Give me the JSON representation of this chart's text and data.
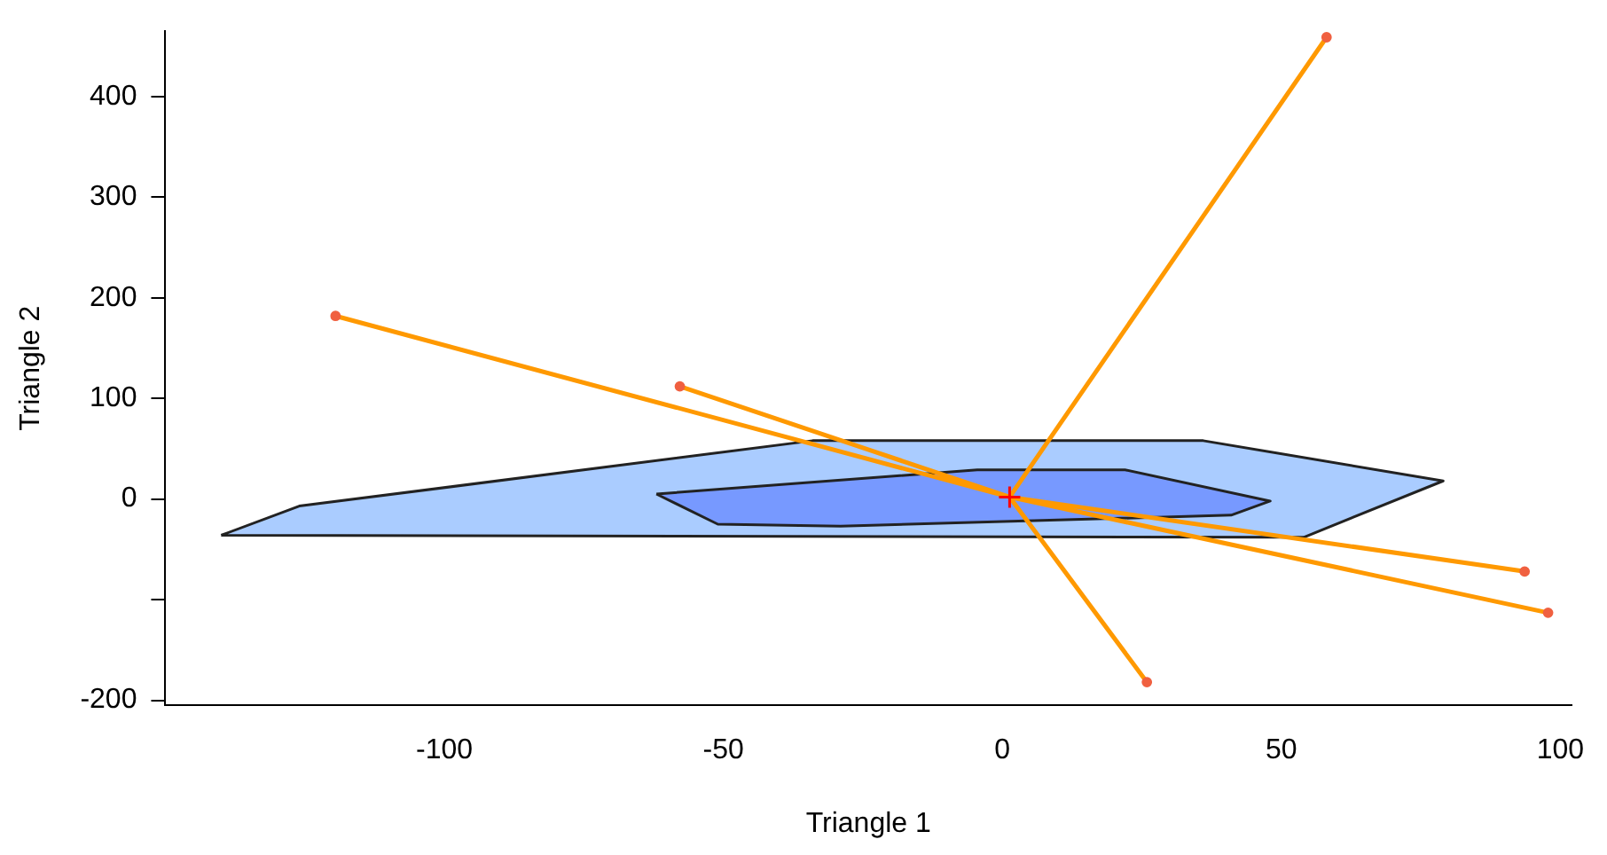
{
  "chart_data": {
    "type": "line",
    "xlabel": "Triangle 1",
    "ylabel": "Triangle 2",
    "xlim": [
      -150,
      102
    ],
    "ylim": [
      -205,
      465
    ],
    "xticks": [
      -100,
      -50,
      0,
      50,
      100
    ],
    "yticks": [
      -200,
      {
        "value": -100,
        "label": null
      },
      0,
      100,
      200,
      300,
      400
    ],
    "grid": false,
    "legend": false,
    "marker": "none",
    "line_style": "solid",
    "series": [
      {
        "type": "area",
        "color": "#aaccff",
        "x": [
          -140,
          -126,
          -34,
          36,
          79,
          54,
          -140
        ],
        "values": [
          -36,
          -7,
          58,
          58,
          18,
          -38,
          -36
        ]
      },
      {
        "type": "area",
        "color": "#7799ff",
        "x": [
          -62,
          -4.5,
          22,
          48,
          41,
          -29,
          -51,
          -62
        ],
        "values": [
          5,
          29,
          29,
          -2,
          -16,
          -27,
          -25,
          5
        ]
      },
      {
        "color": "#ff9900",
        "x": [
          1.3,
          -119.5,
          null,
          1.3,
          -57.8,
          null,
          1.3,
          58.1,
          null,
          1.3,
          25.9,
          null,
          1.3,
          93.6,
          null,
          1.3,
          97.8
        ],
        "values": [
          2,
          182,
          null,
          2,
          112,
          null,
          2,
          459,
          null,
          2,
          -182,
          null,
          2,
          -72,
          null,
          2,
          -113
        ]
      },
      {
        "type": "scatter",
        "color": "#f06040",
        "marker": "circle",
        "x": [
          -119.5,
          -57.8,
          58.1,
          25.9,
          93.6,
          97.8
        ],
        "values": [
          182,
          112,
          459,
          -182,
          -72,
          -113
        ]
      },
      {
        "type": "scatter",
        "color": "#ff0000",
        "marker": "cross",
        "x": [
          1.3
        ],
        "values": [
          2
        ]
      }
    ]
  }
}
